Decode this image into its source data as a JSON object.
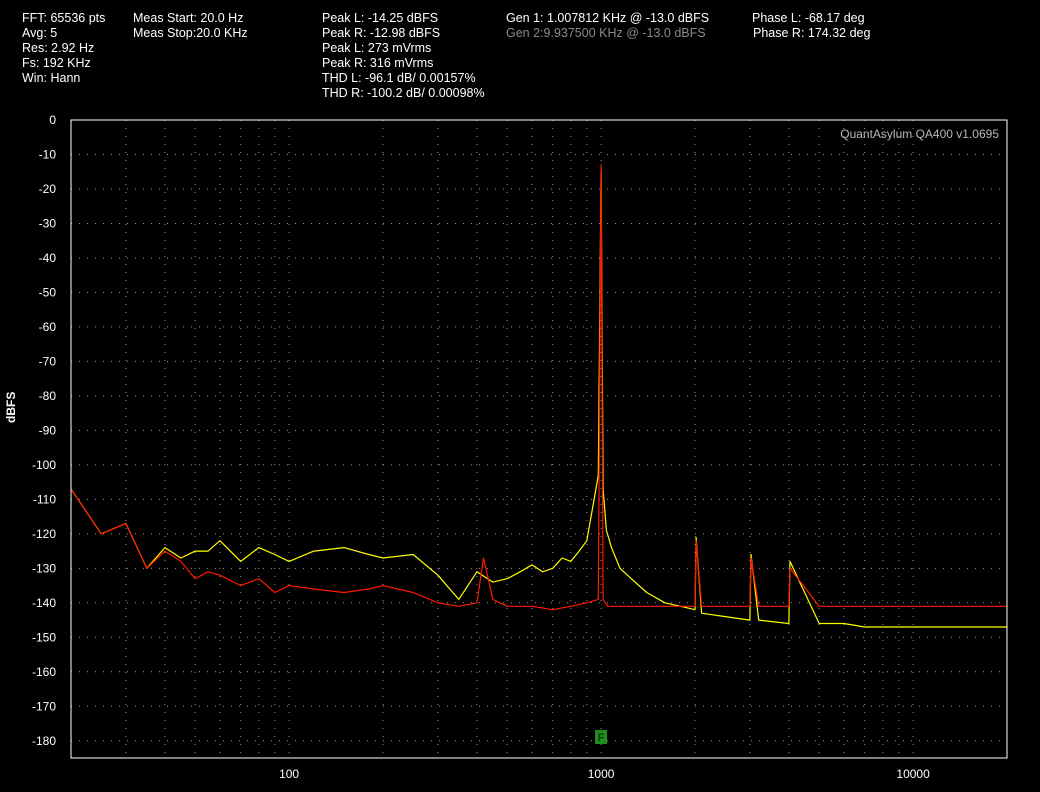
{
  "header": {
    "col1": [
      "FFT: 65536 pts",
      "Avg: 5",
      "Res: 2.92 Hz",
      "Fs: 192 KHz",
      "Win: Hann"
    ],
    "col2": [
      "Meas Start: 20.0 Hz",
      "Meas Stop:20.0 KHz"
    ],
    "col3": [
      "Peak L: -14.25 dBFS",
      "Peak R: -12.98 dBFS",
      "Peak L: 273 mVrms",
      "Peak R: 316 mVrms",
      "THD L: -96.1 dB/ 0.00157%",
      "THD R: -100.2 dB/ 0.00098%"
    ],
    "gen1": "Gen 1: 1.007812 KHz @ -13.0  dBFS",
    "gen2": "Gen 2:9.937500 KHz @ -13.0  dBFS",
    "phase_l": "Phase L: -68.17 deg",
    "phase_r": "Phase R: 174.32 deg"
  },
  "watermark": "QuantAsylum QA400 v1.0695",
  "marker_label": "F",
  "colors": {
    "background": "#000000",
    "plot_border": "#ffffff",
    "grid": "#9a9a9a",
    "left_channel": "#ffff00",
    "right_channel": "#ff1a00",
    "marker": "#1f8f1f",
    "watermark": "#b8b8b8"
  },
  "chart_data": {
    "type": "line",
    "title": "",
    "xlabel": "",
    "ylabel": "dBFS",
    "xscale": "log",
    "xlim": [
      20,
      20000
    ],
    "ylim": [
      -185,
      0
    ],
    "yticks": [
      "0",
      "-10",
      "-20",
      "-30",
      "-40",
      "-50",
      "-60",
      "-70",
      "-80",
      "-90",
      "-100",
      "-110",
      "-120",
      "-130",
      "-140",
      "-150",
      "-160",
      "-170",
      "-180"
    ],
    "yticks_values": [
      0,
      -10,
      -20,
      -30,
      -40,
      -50,
      -60,
      -70,
      -80,
      -90,
      -100,
      -110,
      -120,
      -130,
      -140,
      -150,
      -160,
      -170,
      -180
    ],
    "xticks": [
      "100",
      "1000",
      "10000"
    ],
    "xticks_values": [
      100,
      1000,
      10000
    ],
    "grid": true,
    "marker_frequency": 1000,
    "series": [
      {
        "name": "",
        "color": "#ffff00",
        "x": [
          20,
          25,
          30,
          35,
          40,
          45,
          50,
          55,
          60,
          70,
          80,
          90,
          100,
          120,
          150,
          180,
          200,
          250,
          300,
          350,
          400,
          450,
          500,
          550,
          600,
          650,
          700,
          750,
          800,
          850,
          900,
          950,
          980,
          1000,
          1015,
          1040,
          1080,
          1150,
          1250,
          1400,
          1600,
          1800,
          2000,
          2016,
          2100,
          2500,
          3000,
          3024,
          3200,
          4000,
          4032,
          5000,
          6000,
          7000,
          8000,
          10000,
          12000,
          15000,
          20000
        ],
        "y": [
          -107,
          -120,
          -117,
          -130,
          -124,
          -127,
          -125,
          -125,
          -122,
          -128,
          -124,
          -126,
          -128,
          -125,
          -124,
          -126,
          -127,
          -126,
          -132,
          -139,
          -131,
          -134,
          -133,
          -131,
          -129,
          -131,
          -130,
          -127,
          -128,
          -125,
          -122,
          -110,
          -103,
          -14.3,
          -107,
          -119,
          -124,
          -130,
          -133,
          -137,
          -140,
          -141,
          -142,
          -121,
          -143,
          -144,
          -145,
          -126,
          -145,
          -146,
          -128,
          -146,
          -146,
          -147,
          -147,
          -147,
          -147,
          -147,
          -147
        ]
      },
      {
        "name": "",
        "color": "#ff1a00",
        "x": [
          20,
          25,
          30,
          35,
          40,
          45,
          50,
          55,
          60,
          70,
          80,
          90,
          100,
          120,
          150,
          180,
          200,
          250,
          300,
          350,
          400,
          420,
          450,
          500,
          600,
          700,
          800,
          900,
          980,
          1000,
          1015,
          1050,
          1200,
          1500,
          2000,
          2016,
          2100,
          2500,
          3000,
          3024,
          3200,
          4000,
          4032,
          5000,
          6000,
          7000,
          8000,
          10000,
          12000,
          15000,
          20000
        ],
        "y": [
          -107,
          -120,
          -117,
          -130,
          -125,
          -128,
          -133,
          -131,
          -132,
          -135,
          -133,
          -137,
          -135,
          -136,
          -137,
          -136,
          -135,
          -137,
          -140,
          -141,
          -140,
          -127,
          -139,
          -141,
          -141,
          -142,
          -141,
          -140,
          -139,
          -13.0,
          -139,
          -141,
          -141,
          -141,
          -141,
          -122,
          -141,
          -141,
          -141,
          -127,
          -141,
          -141,
          -130,
          -141,
          -141,
          -141,
          -141,
          -141,
          -141,
          -141,
          -141
        ]
      }
    ]
  }
}
